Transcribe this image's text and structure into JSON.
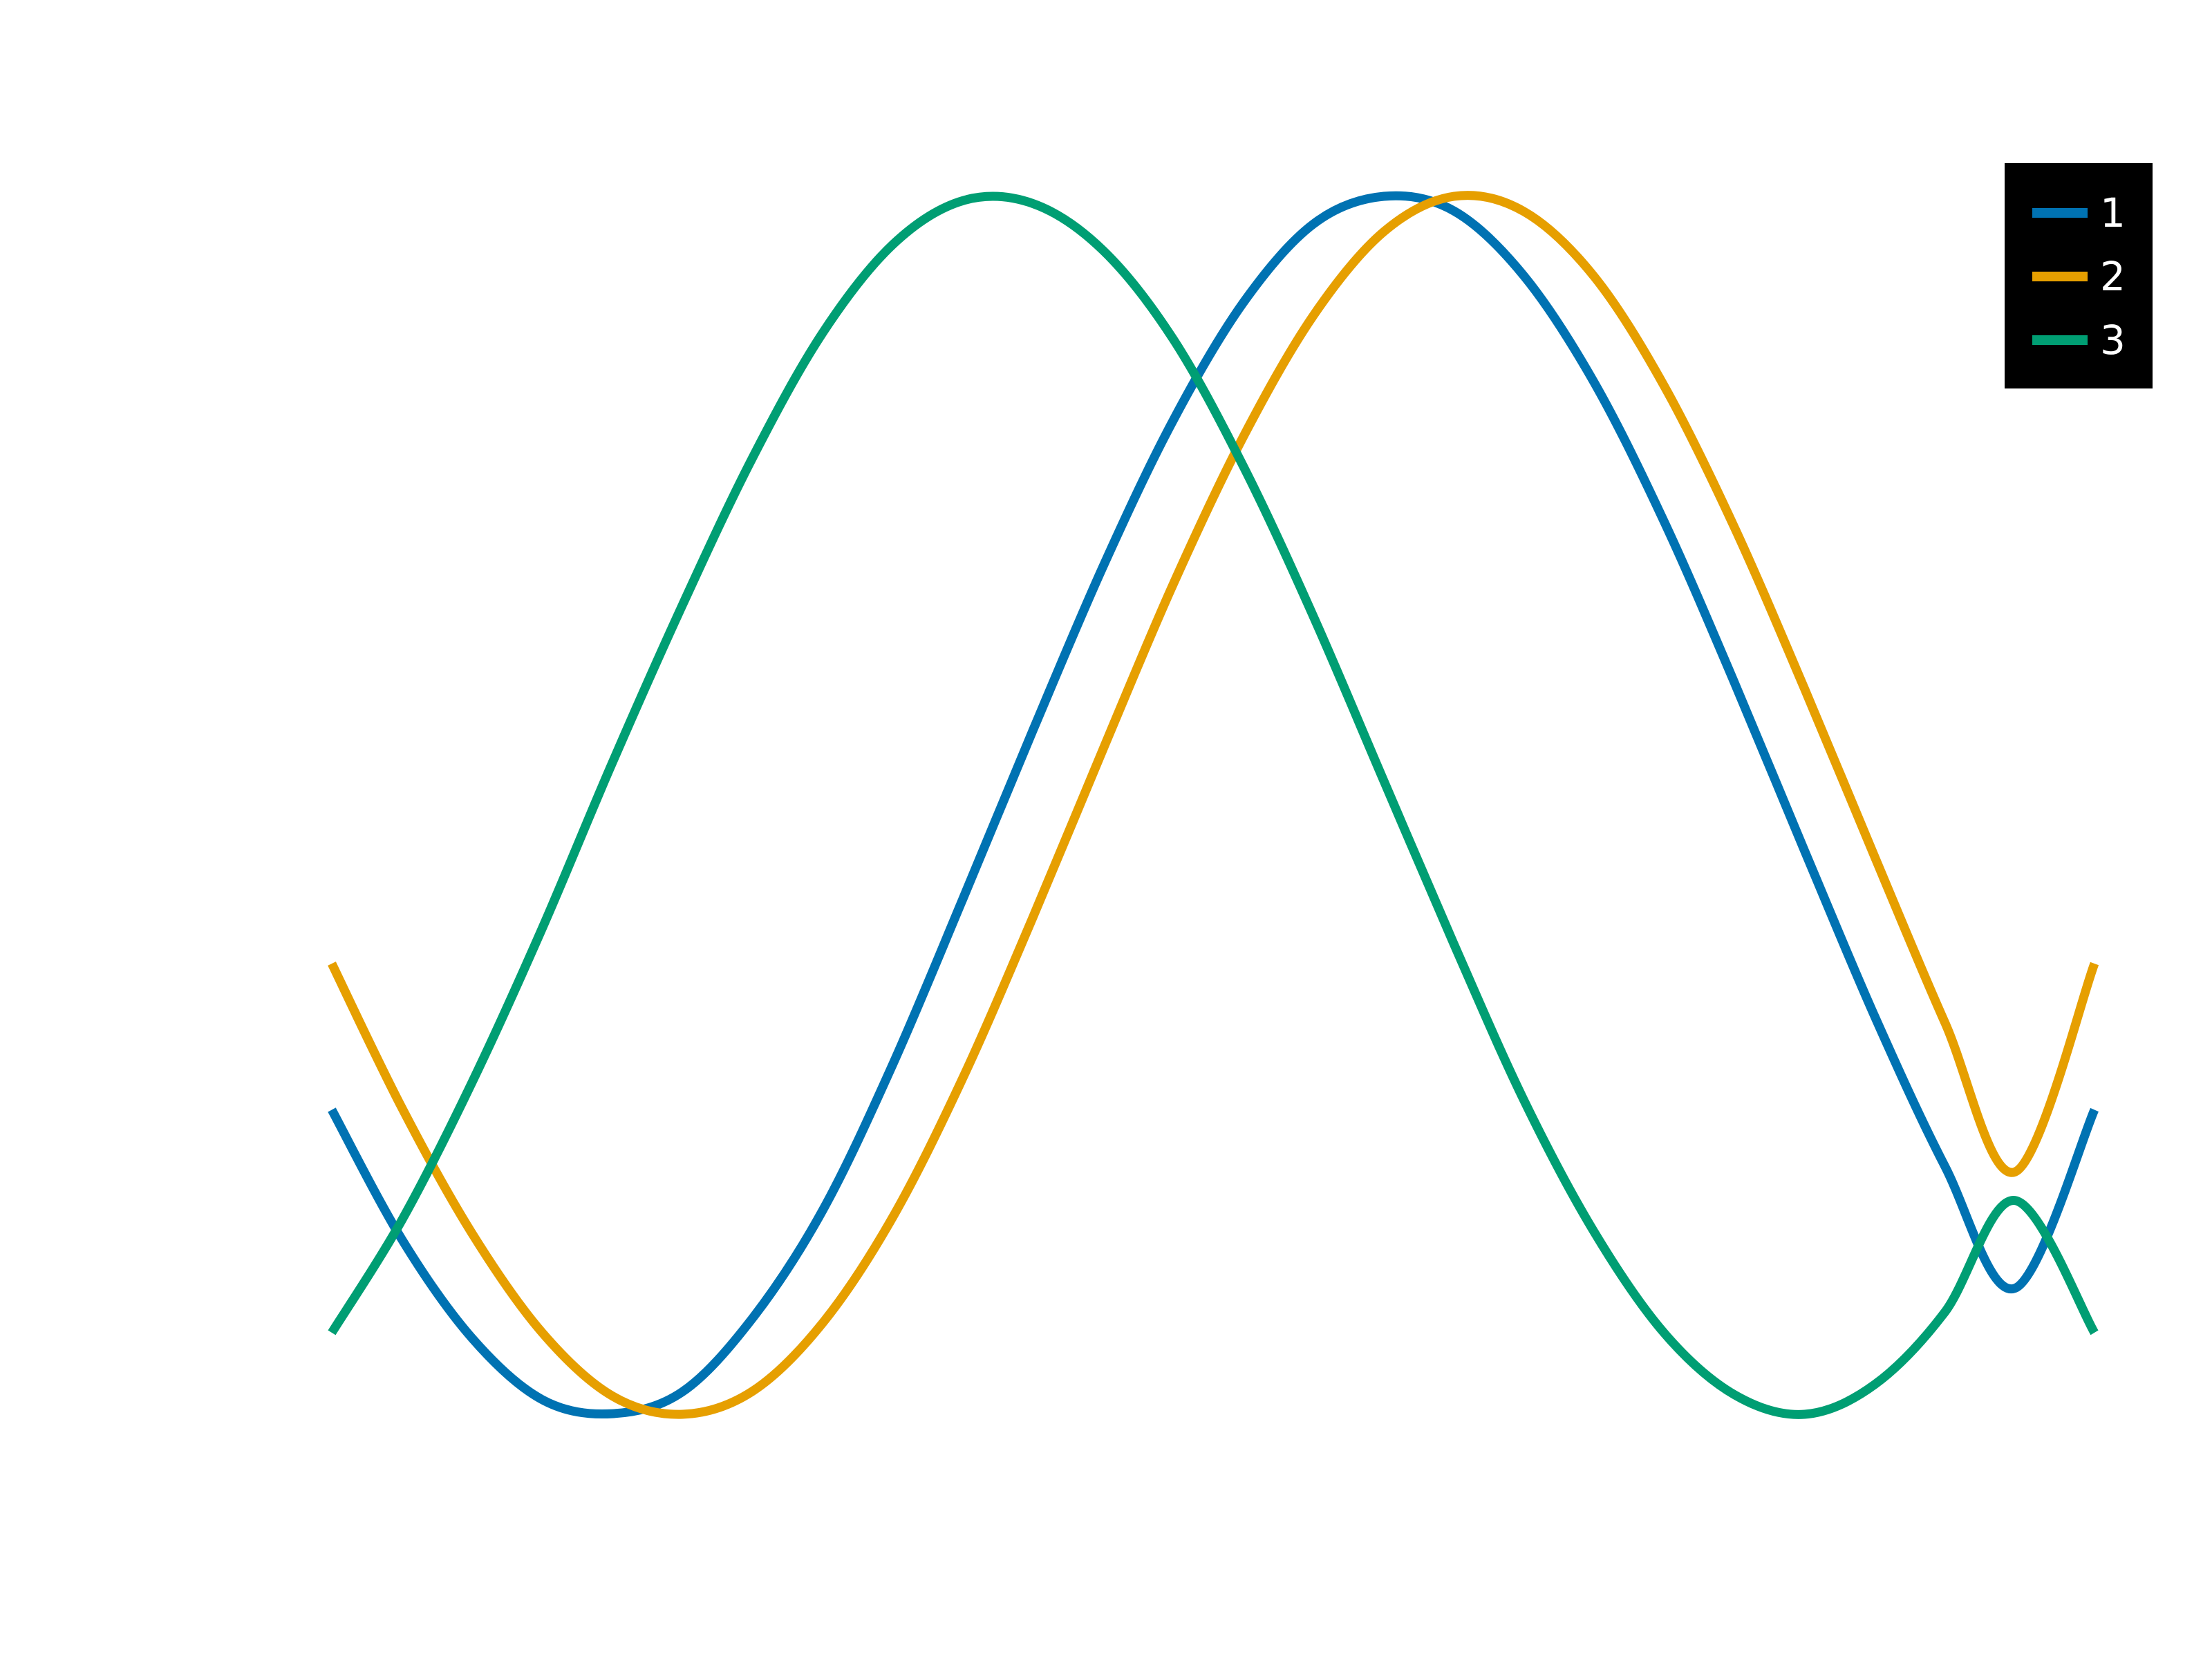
{
  "chart_data": {
    "type": "line",
    "title": "",
    "xlabel": "",
    "ylabel": "",
    "grid": false,
    "legend_position": "top-right",
    "legend_background": "#000000",
    "legend_text_color": "#ffffff",
    "xlim": [
      0,
      6.283
    ],
    "ylim": [
      -1.05,
      1.05
    ],
    "series": [
      {
        "name": "1",
        "color": "#0072b2",
        "x": [
          0.0,
          0.25,
          0.5,
          0.75,
          1.0,
          1.25,
          1.5,
          1.75,
          2.0,
          2.25,
          2.5,
          2.75,
          3.0,
          3.25,
          3.5,
          3.75,
          4.0,
          4.25,
          4.5,
          4.75,
          5.0,
          5.25,
          5.5,
          5.75,
          6.0,
          6.283
        ],
        "y": [
          -0.5,
          -0.713,
          -0.875,
          -0.976,
          -0.999,
          -0.963,
          -0.842,
          -0.665,
          -0.425,
          -0.153,
          0.124,
          0.393,
          0.633,
          0.826,
          0.955,
          1.0,
          0.976,
          0.869,
          0.694,
          0.465,
          0.201,
          -0.075,
          -0.347,
          -0.593,
          -0.793,
          -0.5
        ]
      },
      {
        "name": "2",
        "color": "#e69f00",
        "x": [
          0.0,
          0.25,
          0.5,
          0.75,
          1.0,
          1.25,
          1.5,
          1.75,
          2.0,
          2.25,
          2.5,
          2.75,
          3.0,
          3.25,
          3.5,
          3.75,
          4.0,
          4.25,
          4.5,
          4.75,
          5.0,
          5.25,
          5.5,
          5.75,
          6.0,
          6.283
        ],
        "y": [
          -0.26,
          -0.497,
          -0.703,
          -0.866,
          -0.97,
          -1.0,
          -0.962,
          -0.85,
          -0.676,
          -0.447,
          -0.183,
          0.093,
          0.364,
          0.606,
          0.805,
          0.942,
          1.0,
          0.975,
          0.868,
          0.688,
          0.456,
          0.191,
          -0.085,
          -0.357,
          -0.602,
          -0.26
        ]
      },
      {
        "name": "3",
        "color": "#009e73",
        "x": [
          0.0,
          0.25,
          0.5,
          0.75,
          1.0,
          1.25,
          1.5,
          1.75,
          2.0,
          2.25,
          2.5,
          2.75,
          3.0,
          3.25,
          3.5,
          3.75,
          4.0,
          4.25,
          4.5,
          4.75,
          5.0,
          5.25,
          5.5,
          5.75,
          6.0,
          6.283
        ],
        "y": [
          -0.866,
          -0.681,
          -0.455,
          -0.202,
          0.07,
          0.329,
          0.571,
          0.776,
          0.921,
          0.993,
          0.988,
          0.911,
          0.765,
          0.556,
          0.309,
          0.04,
          -0.228,
          -0.485,
          -0.701,
          -0.867,
          -0.968,
          -1.0,
          -0.951,
          -0.832,
          -0.649,
          -0.866
        ]
      }
    ]
  }
}
